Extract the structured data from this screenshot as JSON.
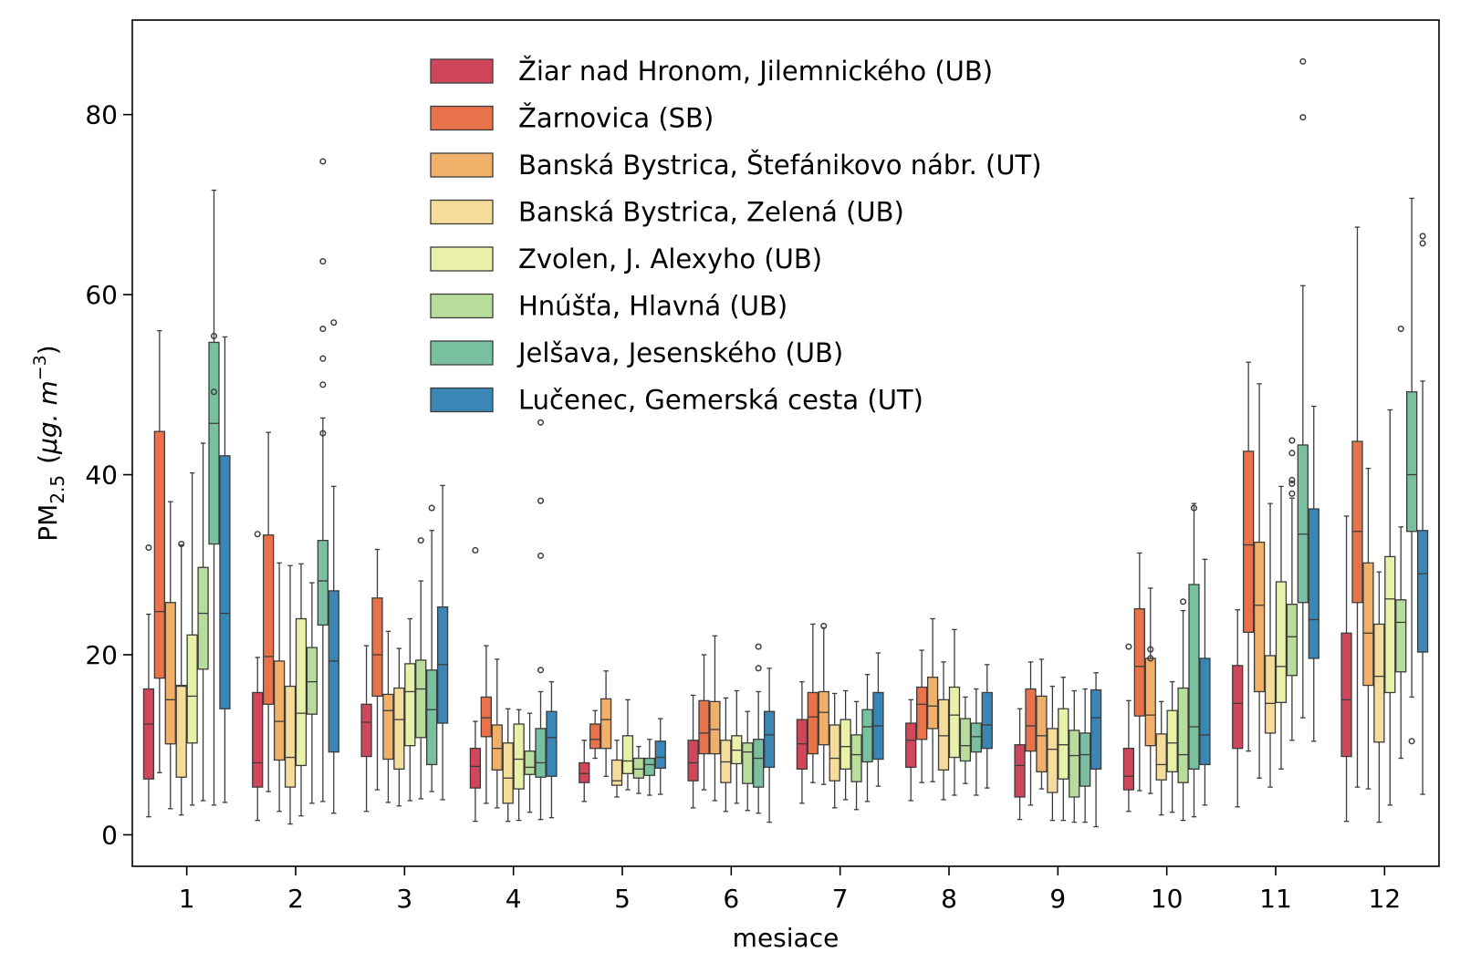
{
  "chart_data": {
    "type": "boxplot",
    "title": "",
    "xlabel": "mesiace",
    "ylabel": {
      "prefix": "PM",
      "subscript": "2.5",
      "unit_open": "(",
      "unit_mu": "μg",
      "unit_dot": ". ",
      "unit_m": "m",
      "unit_exp": "−3",
      "unit_close": ")"
    },
    "ylim": [
      -3.5,
      90.5
    ],
    "yticks": [
      "0",
      "20",
      "40",
      "60",
      "80"
    ],
    "categories": [
      "1",
      "2",
      "3",
      "4",
      "5",
      "6",
      "7",
      "8",
      "9",
      "10",
      "11",
      "12"
    ],
    "legend_position": "top-center",
    "series": [
      {
        "name": "Žiar nad Hronom, Jilemnického (UB)",
        "color": "#d0465a",
        "boxes": [
          {
            "lw": 2.0,
            "q1": 6.2,
            "med": 12.3,
            "q3": 16.2,
            "uw": 24.5,
            "fliers": [
              31.9
            ]
          },
          {
            "lw": 1.6,
            "q1": 5.3,
            "med": 8.0,
            "q3": 15.8,
            "uw": 19.7,
            "fliers": [
              33.4
            ]
          },
          {
            "lw": 2.6,
            "q1": 8.7,
            "med": 12.5,
            "q3": 14.5,
            "uw": 21.0,
            "fliers": []
          },
          {
            "lw": 1.5,
            "q1": 5.2,
            "med": 7.6,
            "q3": 9.6,
            "uw": 12.6,
            "fliers": [
              31.6
            ]
          },
          {
            "lw": 3.7,
            "q1": 5.8,
            "med": 6.8,
            "q3": 8.0,
            "uw": 10.5,
            "fliers": []
          },
          {
            "lw": 3.0,
            "q1": 6.0,
            "med": 8.0,
            "q3": 10.5,
            "uw": 15.5,
            "fliers": []
          },
          {
            "lw": 3.5,
            "q1": 7.3,
            "med": 10.1,
            "q3": 12.8,
            "uw": 17.0,
            "fliers": []
          },
          {
            "lw": 3.8,
            "q1": 7.5,
            "med": 10.5,
            "q3": 12.4,
            "uw": 15.0,
            "fliers": []
          },
          {
            "lw": 1.7,
            "q1": 4.2,
            "med": 7.7,
            "q3": 10.0,
            "uw": 14.0,
            "fliers": []
          },
          {
            "lw": 2.6,
            "q1": 5.0,
            "med": 6.5,
            "q3": 9.6,
            "uw": 14.9,
            "fliers": [
              20.9
            ]
          },
          {
            "lw": 3.1,
            "q1": 9.6,
            "med": 14.6,
            "q3": 18.8,
            "uw": 25.0,
            "fliers": []
          },
          {
            "lw": 1.5,
            "q1": 8.7,
            "med": 15.0,
            "q3": 22.4,
            "uw": 35.4,
            "fliers": []
          }
        ]
      },
      {
        "name": "Žarnovica (SB)",
        "color": "#e8734b",
        "boxes": [
          {
            "lw": 6.9,
            "q1": 17.4,
            "med": 24.8,
            "q3": 44.8,
            "uw": 56.0,
            "fliers": []
          },
          {
            "lw": 4.8,
            "q1": 14.5,
            "med": 19.8,
            "q3": 33.3,
            "uw": 44.7,
            "fliers": []
          },
          {
            "lw": 5.0,
            "q1": 15.4,
            "med": 20.0,
            "q3": 26.3,
            "uw": 31.7,
            "fliers": []
          },
          {
            "lw": 3.5,
            "q1": 10.9,
            "med": 13.0,
            "q3": 15.3,
            "uw": 21.0,
            "fliers": []
          },
          {
            "lw": 8.5,
            "q1": 9.6,
            "med": 10.6,
            "q3": 12.3,
            "uw": 13.8,
            "fliers": []
          },
          {
            "lw": 5.0,
            "q1": 9.0,
            "med": 11.3,
            "q3": 14.9,
            "uw": 20.0,
            "fliers": []
          },
          {
            "lw": 5.8,
            "q1": 9.0,
            "med": 13.1,
            "q3": 15.8,
            "uw": 23.4,
            "fliers": []
          },
          {
            "lw": 5.8,
            "q1": 10.6,
            "med": 14.5,
            "q3": 16.4,
            "uw": 20.5,
            "fliers": []
          },
          {
            "lw": 3.3,
            "q1": 9.3,
            "med": 12.1,
            "q3": 16.2,
            "uw": 19.2,
            "fliers": []
          },
          {
            "lw": 4.9,
            "q1": 13.2,
            "med": 18.7,
            "q3": 25.1,
            "uw": 31.3,
            "fliers": []
          },
          {
            "lw": 9.3,
            "q1": 22.5,
            "med": 32.2,
            "q3": 42.6,
            "uw": 52.5,
            "fliers": []
          },
          {
            "lw": 5.3,
            "q1": 25.8,
            "med": 33.7,
            "q3": 43.7,
            "uw": 67.5,
            "fliers": []
          }
        ]
      },
      {
        "name": "Banská Bystrica, Štefánikovo nábr. (UT)",
        "color": "#f0b06a",
        "boxes": [
          {
            "lw": 2.9,
            "q1": 10.1,
            "med": 15.0,
            "q3": 25.8,
            "uw": 37.0,
            "fliers": []
          },
          {
            "lw": 2.6,
            "q1": 8.3,
            "med": 12.6,
            "q3": 19.3,
            "uw": 30.2,
            "fliers": []
          },
          {
            "lw": 3.6,
            "q1": 8.4,
            "med": 13.8,
            "q3": 15.6,
            "uw": 22.6,
            "fliers": []
          },
          {
            "lw": 3.0,
            "q1": 7.2,
            "med": 9.6,
            "q3": 12.2,
            "uw": 19.5,
            "fliers": []
          },
          {
            "lw": 6.5,
            "q1": 9.6,
            "med": 12.8,
            "q3": 15.1,
            "uw": 18.2,
            "fliers": []
          },
          {
            "lw": 3.8,
            "q1": 9.0,
            "med": 11.7,
            "q3": 14.8,
            "uw": 22.1,
            "fliers": []
          },
          {
            "lw": 5.6,
            "q1": 10.0,
            "med": 13.6,
            "q3": 15.9,
            "uw": 23.0,
            "fliers": [
              23.2
            ]
          },
          {
            "lw": 5.9,
            "q1": 11.8,
            "med": 14.3,
            "q3": 17.5,
            "uw": 24.0,
            "fliers": []
          },
          {
            "lw": 5.1,
            "q1": 7.0,
            "med": 11.0,
            "q3": 15.4,
            "uw": 19.5,
            "fliers": []
          },
          {
            "lw": 4.6,
            "q1": 9.9,
            "med": 13.3,
            "q3": 19.6,
            "uw": 27.4,
            "fliers": [
              19.6,
              20.6
            ]
          },
          {
            "lw": 6.3,
            "q1": 15.9,
            "med": 25.5,
            "q3": 32.5,
            "uw": 50.1,
            "fliers": []
          },
          {
            "lw": 5.1,
            "q1": 16.6,
            "med": 22.4,
            "q3": 30.2,
            "uw": 40.7,
            "fliers": []
          }
        ]
      },
      {
        "name": "Banská Bystrica, Zelená (UB)",
        "color": "#f5dc9a",
        "boxes": [
          {
            "lw": 2.2,
            "q1": 6.4,
            "med": 16.5,
            "q3": 16.6,
            "uw": 32.2,
            "fliers": [
              32.3
            ]
          },
          {
            "lw": 1.2,
            "q1": 5.3,
            "med": 8.6,
            "q3": 16.5,
            "uw": 29.9,
            "fliers": []
          },
          {
            "lw": 3.2,
            "q1": 7.3,
            "med": 12.8,
            "q3": 16.3,
            "uw": 20.7,
            "fliers": []
          },
          {
            "lw": 1.5,
            "q1": 3.5,
            "med": 6.3,
            "q3": 10.2,
            "uw": 14.0,
            "fliers": []
          },
          {
            "lw": 4.2,
            "q1": 5.5,
            "med": 6.0,
            "q3": 8.3,
            "uw": 10.5,
            "fliers": []
          },
          {
            "lw": 2.6,
            "q1": 5.8,
            "med": 8.1,
            "q3": 10.5,
            "uw": 15.2,
            "fliers": []
          },
          {
            "lw": 3.0,
            "q1": 6.0,
            "med": 8.5,
            "q3": 12.2,
            "uw": 15.7,
            "fliers": []
          },
          {
            "lw": 3.9,
            "q1": 7.2,
            "med": 11.0,
            "q3": 15.0,
            "uw": 19.2,
            "fliers": []
          },
          {
            "lw": 1.6,
            "q1": 4.7,
            "med": 9.5,
            "q3": 11.8,
            "uw": 16.5,
            "fliers": []
          },
          {
            "lw": 2.2,
            "q1": 6.1,
            "med": 7.8,
            "q3": 11.2,
            "uw": 14.8,
            "fliers": []
          },
          {
            "lw": 5.3,
            "q1": 11.3,
            "med": 14.6,
            "q3": 19.9,
            "uw": 36.8,
            "fliers": []
          },
          {
            "lw": 1.4,
            "q1": 10.3,
            "med": 17.6,
            "q3": 23.4,
            "uw": 29.2,
            "fliers": []
          }
        ]
      },
      {
        "name": "Zvolen, J. Alexyho (UB)",
        "color": "#e9f0a8",
        "boxes": [
          {
            "lw": 3.3,
            "q1": 10.2,
            "med": 15.4,
            "q3": 22.2,
            "uw": 40.2,
            "fliers": []
          },
          {
            "lw": 2.1,
            "q1": 7.7,
            "med": 13.5,
            "q3": 24.0,
            "uw": 30.1,
            "fliers": []
          },
          {
            "lw": 3.8,
            "q1": 9.9,
            "med": 15.9,
            "q3": 19.0,
            "uw": 24.0,
            "fliers": []
          },
          {
            "lw": 1.6,
            "q1": 5.1,
            "med": 8.4,
            "q3": 12.3,
            "uw": 13.9,
            "fliers": []
          },
          {
            "lw": 5.0,
            "q1": 6.8,
            "med": 8.2,
            "q3": 11.0,
            "uw": 15.0,
            "fliers": []
          },
          {
            "lw": 3.5,
            "q1": 7.9,
            "med": 9.4,
            "q3": 11.0,
            "uw": 16.0,
            "fliers": []
          },
          {
            "lw": 3.9,
            "q1": 7.3,
            "med": 9.8,
            "q3": 12.8,
            "uw": 16.0,
            "fliers": []
          },
          {
            "lw": 4.4,
            "q1": 8.6,
            "med": 13.3,
            "q3": 16.4,
            "uw": 22.8,
            "fliers": []
          },
          {
            "lw": 1.6,
            "q1": 6.2,
            "med": 10.0,
            "q3": 14.0,
            "uw": 17.5,
            "fliers": []
          },
          {
            "lw": 2.5,
            "q1": 7.0,
            "med": 10.2,
            "q3": 13.8,
            "uw": 17.0,
            "fliers": []
          },
          {
            "lw": 7.3,
            "q1": 14.7,
            "med": 18.7,
            "q3": 28.1,
            "uw": 38.7,
            "fliers": []
          },
          {
            "lw": 3.3,
            "q1": 15.8,
            "med": 26.2,
            "q3": 30.9,
            "uw": 47.2,
            "fliers": []
          }
        ]
      },
      {
        "name": "Hnúšťa, Hlavná (UB)",
        "color": "#b8dc9c",
        "boxes": [
          {
            "lw": 3.8,
            "q1": 18.4,
            "med": 24.6,
            "q3": 29.7,
            "uw": 43.5,
            "fliers": []
          },
          {
            "lw": 3.5,
            "q1": 13.4,
            "med": 17.0,
            "q3": 20.8,
            "uw": 28.0,
            "fliers": []
          },
          {
            "lw": 4.0,
            "q1": 10.8,
            "med": 16.2,
            "q3": 19.4,
            "uw": 28.2,
            "fliers": [
              32.7
            ]
          },
          {
            "lw": 2.5,
            "q1": 6.7,
            "med": 7.5,
            "q3": 9.3,
            "uw": 13.5,
            "fliers": []
          },
          {
            "lw": 4.6,
            "q1": 6.3,
            "med": 7.3,
            "q3": 8.5,
            "uw": 9.8,
            "fliers": []
          },
          {
            "lw": 2.7,
            "q1": 5.7,
            "med": 9.2,
            "q3": 10.2,
            "uw": 13.7,
            "fliers": []
          },
          {
            "lw": 2.8,
            "q1": 5.9,
            "med": 8.9,
            "q3": 11.1,
            "uw": 14.8,
            "fliers": []
          },
          {
            "lw": 5.7,
            "q1": 8.2,
            "med": 9.9,
            "q3": 12.9,
            "uw": 15.3,
            "fliers": []
          },
          {
            "lw": 1.4,
            "q1": 4.2,
            "med": 8.8,
            "q3": 11.6,
            "uw": 16.0,
            "fliers": []
          },
          {
            "lw": 1.6,
            "q1": 5.8,
            "med": 8.9,
            "q3": 16.3,
            "uw": 24.9,
            "fliers": [
              25.9
            ]
          },
          {
            "lw": 10.5,
            "q1": 17.7,
            "med": 22.0,
            "q3": 25.6,
            "uw": 37.4,
            "fliers": [
              37.9,
              39.0,
              39.4,
              42.4,
              43.8
            ]
          },
          {
            "lw": 8.5,
            "q1": 18.1,
            "med": 23.6,
            "q3": 26.1,
            "uw": 34.2,
            "fliers": [
              56.2
            ]
          }
        ]
      },
      {
        "name": "Jelšava, Jesenského (UB)",
        "color": "#79c0a0",
        "boxes": [
          {
            "lw": 3.3,
            "q1": 32.3,
            "med": 45.7,
            "q3": 54.7,
            "uw": 71.6,
            "fliers": [
              49.2,
              55.4
            ]
          },
          {
            "lw": 3.7,
            "q1": 23.3,
            "med": 28.2,
            "q3": 32.7,
            "uw": 46.3,
            "fliers": [
              44.6,
              50.0,
              52.9,
              56.2,
              63.7,
              74.8
            ]
          },
          {
            "lw": 4.8,
            "q1": 7.8,
            "med": 13.9,
            "q3": 18.3,
            "uw": 33.8,
            "fliers": [
              36.3
            ]
          },
          {
            "lw": 1.7,
            "q1": 6.4,
            "med": 8.0,
            "q3": 11.8,
            "uw": 15.9,
            "fliers": [
              18.3,
              31.0,
              37.1,
              45.8
            ]
          },
          {
            "lw": 4.4,
            "q1": 6.6,
            "med": 7.8,
            "q3": 8.5,
            "uw": 10.6,
            "fliers": []
          },
          {
            "lw": 2.4,
            "q1": 5.3,
            "med": 8.5,
            "q3": 10.6,
            "uw": 15.9,
            "fliers": [
              18.5,
              20.9
            ]
          },
          {
            "lw": 3.7,
            "q1": 8.1,
            "med": 12.0,
            "q3": 13.9,
            "uw": 17.8,
            "fliers": []
          },
          {
            "lw": 4.4,
            "q1": 9.2,
            "med": 10.9,
            "q3": 12.4,
            "uw": 16.2,
            "fliers": []
          },
          {
            "lw": 1.4,
            "q1": 5.4,
            "med": 8.9,
            "q3": 11.3,
            "uw": 16.2,
            "fliers": []
          },
          {
            "lw": 2.0,
            "q1": 7.3,
            "med": 12.0,
            "q3": 27.8,
            "uw": 36.8,
            "fliers": [
              36.3
            ]
          },
          {
            "lw": 13.0,
            "q1": 25.8,
            "med": 33.4,
            "q3": 43.3,
            "uw": 61.0,
            "fliers": [
              79.7,
              85.9
            ]
          },
          {
            "lw": 15.3,
            "q1": 33.7,
            "med": 40.0,
            "q3": 49.2,
            "uw": 70.7,
            "fliers": [
              10.4
            ]
          }
        ]
      },
      {
        "name": "Lučenec, Gemerská cesta (UT)",
        "color": "#3a86b4",
        "boxes": [
          {
            "lw": 3.6,
            "q1": 14.0,
            "med": 24.6,
            "q3": 42.1,
            "uw": 55.3,
            "fliers": []
          },
          {
            "lw": 2.4,
            "q1": 9.2,
            "med": 19.3,
            "q3": 27.1,
            "uw": 38.7,
            "fliers": [
              56.9
            ]
          },
          {
            "lw": 3.9,
            "q1": 12.4,
            "med": 18.9,
            "q3": 25.3,
            "uw": 38.8,
            "fliers": []
          },
          {
            "lw": 1.9,
            "q1": 6.5,
            "med": 10.8,
            "q3": 13.7,
            "uw": 17.0,
            "fliers": []
          },
          {
            "lw": 4.5,
            "q1": 7.4,
            "med": 8.6,
            "q3": 10.4,
            "uw": 12.9,
            "fliers": []
          },
          {
            "lw": 1.4,
            "q1": 7.5,
            "med": 11.1,
            "q3": 13.7,
            "uw": 18.5,
            "fliers": []
          },
          {
            "lw": 5.4,
            "q1": 8.4,
            "med": 12.1,
            "q3": 15.8,
            "uw": 20.2,
            "fliers": []
          },
          {
            "lw": 5.2,
            "q1": 9.6,
            "med": 12.2,
            "q3": 15.8,
            "uw": 18.9,
            "fliers": []
          },
          {
            "lw": 0.9,
            "q1": 7.3,
            "med": 13.0,
            "q3": 16.1,
            "uw": 18.0,
            "fliers": []
          },
          {
            "lw": 3.3,
            "q1": 7.8,
            "med": 11.1,
            "q3": 19.6,
            "uw": 30.6,
            "fliers": []
          },
          {
            "lw": 10.4,
            "q1": 19.6,
            "med": 23.9,
            "q3": 36.2,
            "uw": 47.6,
            "fliers": []
          },
          {
            "lw": 4.5,
            "q1": 20.3,
            "med": 29.0,
            "q3": 33.8,
            "uw": 50.4,
            "fliers": [
              65.7,
              66.5
            ]
          }
        ]
      }
    ]
  }
}
